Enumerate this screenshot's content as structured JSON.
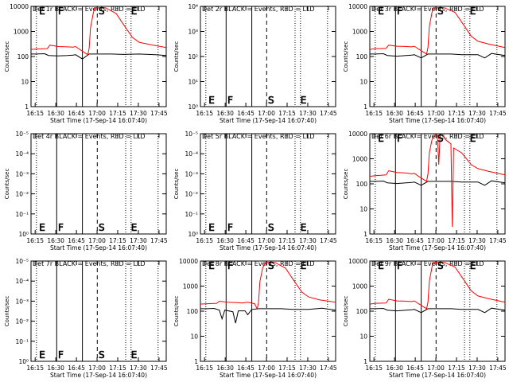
{
  "chart_data": [
    {
      "type": "line",
      "title": "Det 1r BLACK = Events, RED = LLD",
      "xlabel": "Start Time (17-Sep-14 16:07:40)",
      "ylabel": "Counts/sec",
      "yscale": "log",
      "yticks": [
        "1",
        "10",
        "100",
        "1000",
        "10000"
      ],
      "xticks": [
        "16:15",
        "16:30",
        "16:45",
        "17:00",
        "17:15",
        "17:30",
        "17:45"
      ],
      "markers": [
        "E",
        "F",
        "S",
        "E"
      ],
      "series": [
        {
          "color": "#000000",
          "values": [
            [
              0,
              160
            ],
            [
              0.04,
              160
            ],
            [
              0.1,
              165
            ],
            [
              0.13,
              140
            ],
            [
              0.2,
              135
            ],
            [
              0.27,
              140
            ],
            [
              0.31,
              145
            ],
            [
              0.33,
              150
            ],
            [
              0.38,
              100
            ],
            [
              0.43,
              160
            ],
            [
              0.6,
              160
            ],
            [
              0.68,
              155
            ],
            [
              0.8,
              160
            ],
            [
              0.92,
              150
            ],
            [
              1,
              140
            ]
          ]
        },
        {
          "color": "#ff0000",
          "values": [
            [
              0,
              250
            ],
            [
              0.04,
              260
            ],
            [
              0.12,
              270
            ],
            [
              0.14,
              380
            ],
            [
              0.2,
              330
            ],
            [
              0.27,
              320
            ],
            [
              0.31,
              310
            ],
            [
              0.33,
              330
            ],
            [
              0.36,
              250
            ],
            [
              0.42,
              150
            ],
            [
              0.43,
              280
            ],
            [
              0.44,
              2000
            ],
            [
              0.46,
              8000
            ],
            [
              0.47,
              14000
            ],
            [
              0.55,
              14000
            ],
            [
              0.63,
              8000
            ],
            [
              0.68,
              3000
            ],
            [
              0.75,
              800
            ],
            [
              0.8,
              500
            ],
            [
              0.88,
              400
            ],
            [
              1,
              300
            ]
          ]
        }
      ]
    },
    {
      "type": "line",
      "title": "Det 2r BLACK = Events, RED = LLD",
      "xlabel": "Start Time (17-Sep-14 16:07:40)",
      "ylabel": "Counts/sec",
      "yscale": "log",
      "yticks": [
        "10⁰",
        "10¹",
        "10²",
        "10³",
        "10⁴"
      ],
      "xticks": [
        "16:15",
        "16:30",
        "16:45",
        "17:00",
        "17:15",
        "17:30",
        "17:45"
      ],
      "markers": [
        "E",
        "F",
        "S",
        "E"
      ],
      "series": []
    },
    {
      "type": "line",
      "title": "Det 3r BLACK = Events, RED = LLD",
      "xlabel": "Start Time (17-Sep-14 16:07:40)",
      "ylabel": "Counts/sec",
      "yscale": "log",
      "yticks": [
        "1",
        "10",
        "100",
        "1000",
        "10000"
      ],
      "xticks": [
        "16:15",
        "16:30",
        "16:45",
        "17:00",
        "17:15",
        "17:30",
        "17:45"
      ],
      "markers": [
        "E",
        "F",
        "S",
        "E"
      ],
      "series": [
        {
          "color": "#000000",
          "values": [
            [
              0,
              160
            ],
            [
              0.04,
              160
            ],
            [
              0.1,
              165
            ],
            [
              0.13,
              140
            ],
            [
              0.2,
              130
            ],
            [
              0.27,
              140
            ],
            [
              0.31,
              145
            ],
            [
              0.33,
              150
            ],
            [
              0.38,
              110
            ],
            [
              0.43,
              160
            ],
            [
              0.6,
              160
            ],
            [
              0.68,
              150
            ],
            [
              0.8,
              150
            ],
            [
              0.85,
              110
            ],
            [
              0.9,
              170
            ],
            [
              1,
              140
            ]
          ]
        },
        {
          "color": "#ff0000",
          "values": [
            [
              0,
              250
            ],
            [
              0.04,
              270
            ],
            [
              0.12,
              280
            ],
            [
              0.14,
              380
            ],
            [
              0.2,
              340
            ],
            [
              0.27,
              330
            ],
            [
              0.31,
              320
            ],
            [
              0.33,
              340
            ],
            [
              0.36,
              260
            ],
            [
              0.42,
              160
            ],
            [
              0.43,
              300
            ],
            [
              0.44,
              2200
            ],
            [
              0.46,
              9000
            ],
            [
              0.47,
              14000
            ],
            [
              0.55,
              14000
            ],
            [
              0.63,
              9000
            ],
            [
              0.68,
              3500
            ],
            [
              0.75,
              900
            ],
            [
              0.8,
              550
            ],
            [
              0.88,
              420
            ],
            [
              1,
              300
            ]
          ]
        }
      ]
    },
    {
      "type": "line",
      "title": "Det 4r BLACK = Events, RED = LLD",
      "xlabel": "Start Time (17-Sep-14 16:07:40)",
      "ylabel": "Counts/sec",
      "yscale": "log",
      "yticks": [
        "10⁰",
        "10⁻¹",
        "10⁻²",
        "10⁻³",
        "10⁻⁴",
        "10⁻⁵"
      ],
      "xticks": [
        "16:15",
        "16:30",
        "16:45",
        "17:00",
        "17:15",
        "17:30",
        "17:45"
      ],
      "markers": [
        "E",
        "F",
        "S",
        "E"
      ],
      "series": []
    },
    {
      "type": "line",
      "title": "Det 5r BLACK = Events, RED = LLD",
      "xlabel": "Start Time (17-Sep-14 16:07:40)",
      "ylabel": "Counts/sec",
      "yscale": "log",
      "yticks": [
        "10⁰",
        "10⁻¹",
        "10⁻²",
        "10⁻³",
        "10⁻⁴",
        "10⁻⁵"
      ],
      "xticks": [
        "16:15",
        "16:30",
        "16:45",
        "17:00",
        "17:15",
        "17:30",
        "17:45"
      ],
      "markers": [
        "E",
        "F",
        "S",
        "E"
      ],
      "series": []
    },
    {
      "type": "line",
      "title": "Det 6r BLACK = Events, RED = LLD",
      "xlabel": "Start Time (17-Sep-14 16:07:40)",
      "ylabel": "Counts/sec",
      "yscale": "log",
      "yticks": [
        "1",
        "10",
        "100",
        "1000",
        "10000"
      ],
      "xticks": [
        "16:15",
        "16:30",
        "16:45",
        "17:00",
        "17:15",
        "17:30",
        "17:45"
      ],
      "markers": [
        "E",
        "F",
        "S",
        "E"
      ],
      "series": [
        {
          "color": "#000000",
          "values": [
            [
              0,
              160
            ],
            [
              0.04,
              160
            ],
            [
              0.1,
              165
            ],
            [
              0.13,
              140
            ],
            [
              0.2,
              130
            ],
            [
              0.27,
              140
            ],
            [
              0.31,
              145
            ],
            [
              0.33,
              150
            ],
            [
              0.38,
              110
            ],
            [
              0.43,
              160
            ],
            [
              0.6,
              160
            ],
            [
              0.68,
              150
            ],
            [
              0.8,
              150
            ],
            [
              0.85,
              110
            ],
            [
              0.9,
              170
            ],
            [
              1,
              140
            ]
          ]
        },
        {
          "color": "#ff0000",
          "values": [
            [
              0,
              260
            ],
            [
              0.04,
              280
            ],
            [
              0.12,
              300
            ],
            [
              0.14,
              450
            ],
            [
              0.2,
              380
            ],
            [
              0.27,
              360
            ],
            [
              0.31,
              330
            ],
            [
              0.33,
              350
            ],
            [
              0.36,
              260
            ],
            [
              0.42,
              160
            ],
            [
              0.43,
              320
            ],
            [
              0.44,
              2500
            ],
            [
              0.46,
              9000
            ],
            [
              0.48,
              14000
            ],
            [
              0.5,
              14000
            ],
            [
              0.51,
              800
            ],
            [
              0.52,
              14000
            ],
            [
              0.54,
              14000
            ],
            [
              0.56,
              9000
            ],
            [
              0.6,
              6000
            ],
            [
              0.61,
              2
            ],
            [
              0.62,
              4000
            ],
            [
              0.68,
              2500
            ],
            [
              0.75,
              800
            ],
            [
              0.8,
              550
            ],
            [
              0.88,
              420
            ],
            [
              1,
              300
            ]
          ]
        }
      ]
    },
    {
      "type": "line",
      "title": "Det 7r BLACK = Events, RED = LLD",
      "xlabel": "Start Time (17-Sep-14 16:07:40)",
      "ylabel": "Counts/sec",
      "yscale": "log",
      "yticks": [
        "10⁰",
        "10⁻¹",
        "10⁻²",
        "10⁻³",
        "10⁻⁴",
        "10⁻⁵"
      ],
      "xticks": [
        "16:15",
        "16:30",
        "16:45",
        "17:00",
        "17:15",
        "17:30",
        "17:45"
      ],
      "markers": [
        "E",
        "F",
        "S",
        "E"
      ],
      "series": []
    },
    {
      "type": "line",
      "title": "Det 8r BLACK = Events, RED = LLD",
      "xlabel": "Start Time (17-Sep-14 16:07:40)",
      "ylabel": "Counts/sec",
      "yscale": "log",
      "yticks": [
        "1",
        "10",
        "100",
        "1000",
        "10000"
      ],
      "xticks": [
        "16:15",
        "16:30",
        "16:45",
        "17:00",
        "17:15",
        "17:30",
        "17:45"
      ],
      "markers": [
        "E",
        "F",
        "S",
        "E"
      ],
      "series": [
        {
          "color": "#000000",
          "values": [
            [
              0,
              160
            ],
            [
              0.05,
              160
            ],
            [
              0.1,
              165
            ],
            [
              0.14,
              140
            ],
            [
              0.16,
              60
            ],
            [
              0.18,
              140
            ],
            [
              0.24,
              120
            ],
            [
              0.26,
              40
            ],
            [
              0.28,
              130
            ],
            [
              0.33,
              130
            ],
            [
              0.35,
              90
            ],
            [
              0.38,
              150
            ],
            [
              0.43,
              160
            ],
            [
              0.6,
              160
            ],
            [
              0.68,
              150
            ],
            [
              0.8,
              150
            ],
            [
              0.9,
              170
            ],
            [
              1,
              140
            ]
          ]
        },
        {
          "color": "#ff0000",
          "values": [
            [
              0,
              250
            ],
            [
              0.05,
              260
            ],
            [
              0.12,
              270
            ],
            [
              0.14,
              330
            ],
            [
              0.2,
              300
            ],
            [
              0.27,
              290
            ],
            [
              0.31,
              280
            ],
            [
              0.35,
              300
            ],
            [
              0.4,
              260
            ],
            [
              0.42,
              160
            ],
            [
              0.43,
              300
            ],
            [
              0.44,
              2200
            ],
            [
              0.46,
              8000
            ],
            [
              0.48,
              14000
            ],
            [
              0.55,
              14000
            ],
            [
              0.63,
              8000
            ],
            [
              0.68,
              3000
            ],
            [
              0.75,
              800
            ],
            [
              0.8,
              500
            ],
            [
              0.88,
              380
            ],
            [
              1,
              300
            ]
          ]
        }
      ]
    },
    {
      "type": "line",
      "title": "Det 9r BLACK = Events, RED = LLD",
      "xlabel": "Start Time (17-Sep-14 16:07:40)",
      "ylabel": "Counts/sec",
      "yscale": "log",
      "yticks": [
        "1",
        "10",
        "100",
        "1000",
        "10000"
      ],
      "xticks": [
        "16:15",
        "16:30",
        "16:45",
        "17:00",
        "17:15",
        "17:30",
        "17:45"
      ],
      "markers": [
        "E",
        "F",
        "S",
        "E"
      ],
      "series": [
        {
          "color": "#000000",
          "values": [
            [
              0,
              160
            ],
            [
              0.04,
              160
            ],
            [
              0.1,
              165
            ],
            [
              0.13,
              140
            ],
            [
              0.2,
              130
            ],
            [
              0.27,
              140
            ],
            [
              0.31,
              145
            ],
            [
              0.33,
              150
            ],
            [
              0.38,
              110
            ],
            [
              0.43,
              160
            ],
            [
              0.6,
              160
            ],
            [
              0.68,
              150
            ],
            [
              0.8,
              150
            ],
            [
              0.85,
              110
            ],
            [
              0.9,
              170
            ],
            [
              1,
              140
            ]
          ]
        },
        {
          "color": "#ff0000",
          "values": [
            [
              0,
              250
            ],
            [
              0.04,
              270
            ],
            [
              0.12,
              280
            ],
            [
              0.14,
              400
            ],
            [
              0.2,
              340
            ],
            [
              0.27,
              330
            ],
            [
              0.31,
              320
            ],
            [
              0.33,
              340
            ],
            [
              0.36,
              260
            ],
            [
              0.42,
              160
            ],
            [
              0.43,
              300
            ],
            [
              0.44,
              2200
            ],
            [
              0.46,
              9000
            ],
            [
              0.47,
              14000
            ],
            [
              0.55,
              14000
            ],
            [
              0.63,
              9000
            ],
            [
              0.68,
              3500
            ],
            [
              0.75,
              900
            ],
            [
              0.8,
              550
            ],
            [
              0.88,
              420
            ],
            [
              1,
              300
            ]
          ]
        }
      ]
    }
  ]
}
